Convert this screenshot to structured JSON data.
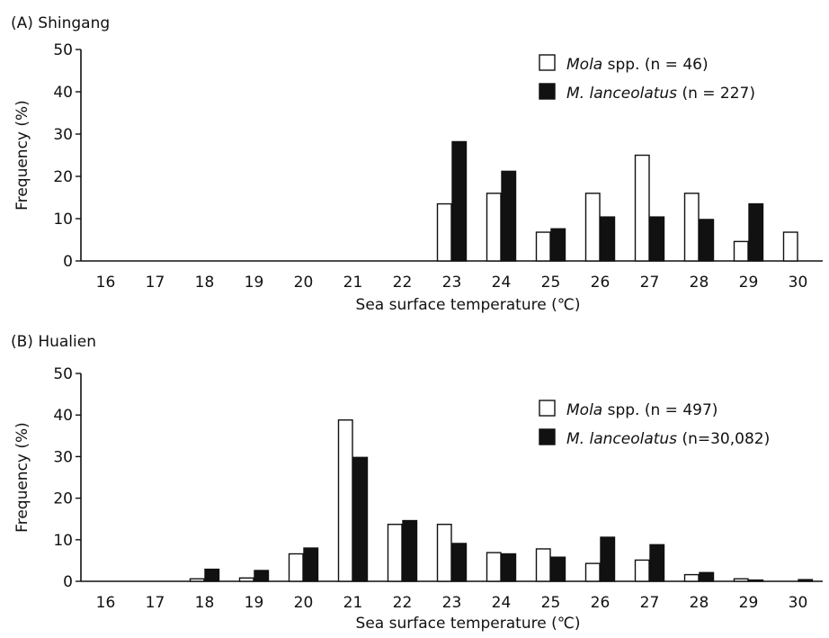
{
  "chart_data": [
    {
      "type": "bar",
      "title": "(A) Shingang",
      "xlabel": "Sea surface temperature (℃)",
      "ylabel": "Frequency (%)",
      "ylim": [
        0,
        50
      ],
      "yticks": [
        "0",
        "10",
        "20",
        "30",
        "40",
        "50"
      ],
      "categories": [
        "16",
        "17",
        "18",
        "19",
        "20",
        "21",
        "22",
        "23",
        "24",
        "25",
        "26",
        "27",
        "28",
        "29",
        "30"
      ],
      "legend_position": "top-right",
      "grid": false,
      "series": [
        {
          "name_italic": "Mola",
          "name_rest": " spp. (n = 46)",
          "color": "#ffffff",
          "values": [
            0,
            0,
            0,
            0,
            0,
            0,
            0,
            13.5,
            16,
            6.8,
            16,
            25,
            16,
            4.6,
            6.8
          ]
        },
        {
          "name_italic": "M. lanceolatus",
          "name_rest": " (n = 227)",
          "color": "#111111",
          "values": [
            0,
            0,
            0,
            0,
            0,
            0,
            0,
            28.2,
            21.2,
            7.6,
            10.4,
            10.4,
            9.8,
            13.5,
            0
          ]
        }
      ]
    },
    {
      "type": "bar",
      "title": "(B) Hualien",
      "xlabel": "Sea surface temperature (℃)",
      "ylabel": "Frequency (%)",
      "ylim": [
        0,
        50
      ],
      "yticks": [
        "0",
        "10",
        "20",
        "30",
        "40",
        "50"
      ],
      "categories": [
        "16",
        "17",
        "18",
        "19",
        "20",
        "21",
        "22",
        "23",
        "24",
        "25",
        "26",
        "27",
        "28",
        "29",
        "30"
      ],
      "legend_position": "top-right",
      "grid": false,
      "series": [
        {
          "name_italic": "Mola",
          "name_rest": " spp. (n = 497)",
          "color": "#ffffff",
          "values": [
            0,
            0,
            0.6,
            0.8,
            6.6,
            38.8,
            13.7,
            13.7,
            6.9,
            7.8,
            4.3,
            5.1,
            1.6,
            0.6,
            0
          ]
        },
        {
          "name_italic": "M. lanceolatus",
          "name_rest": " (n=30,082)",
          "color": "#111111",
          "values": [
            0,
            0,
            2.9,
            2.6,
            8.0,
            29.8,
            14.6,
            9.1,
            6.6,
            5.8,
            10.6,
            8.8,
            2.1,
            0.3,
            0.4
          ]
        }
      ]
    }
  ]
}
